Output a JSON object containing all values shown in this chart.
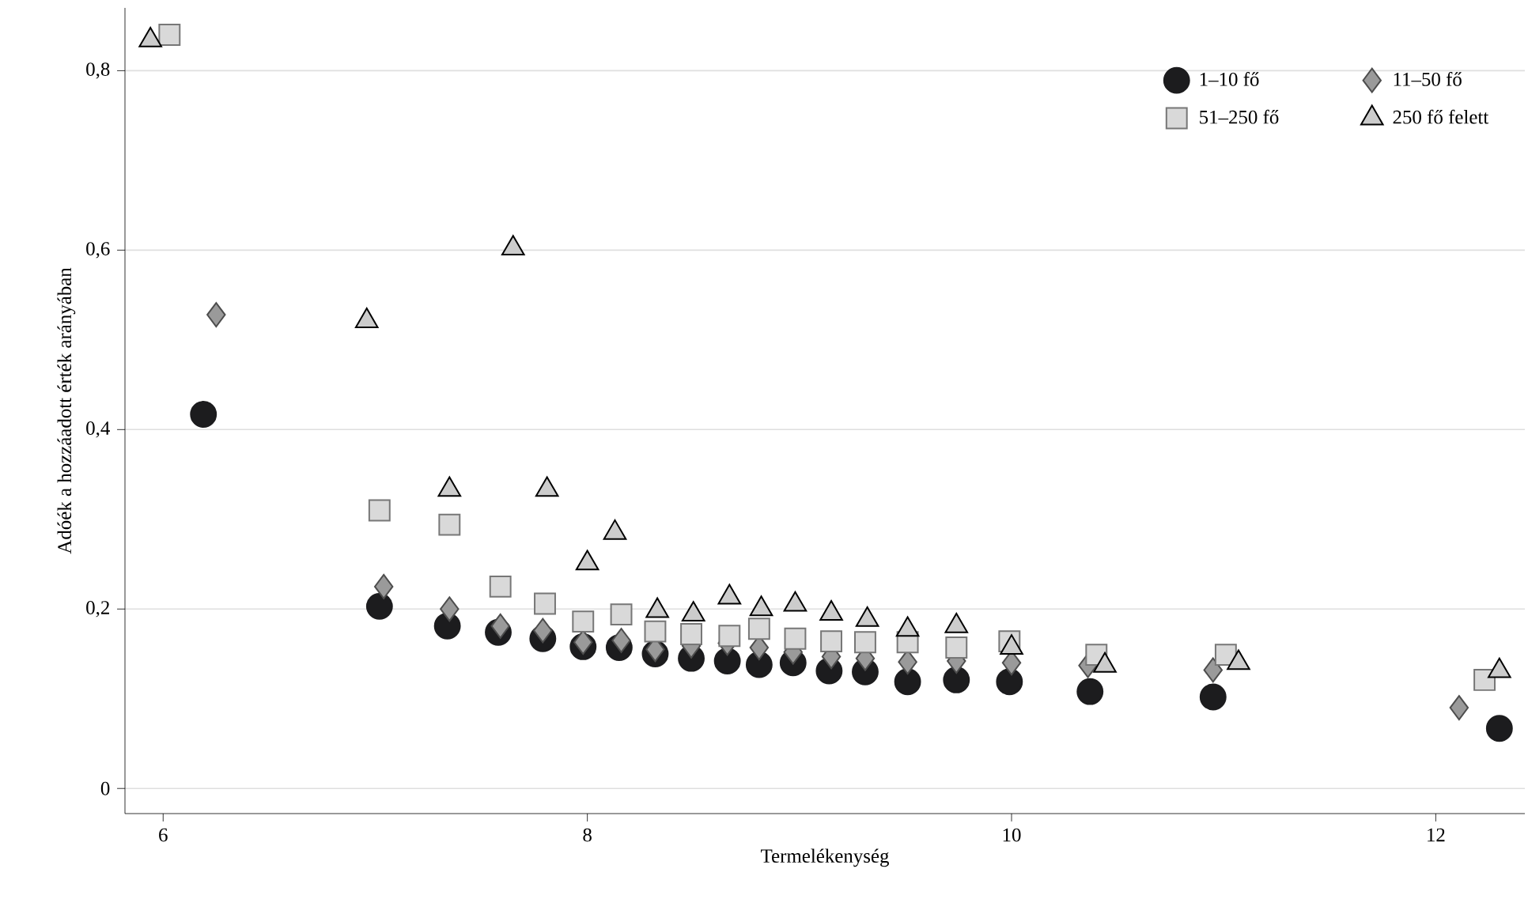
{
  "chart_data": {
    "type": "scatter",
    "xlabel": "Termelékenység",
    "ylabel": "Adóék a hozzáadott érték arányában",
    "xlim": [
      5.82,
      12.42
    ],
    "ylim": [
      -0.028,
      0.87
    ],
    "xticks": [
      6,
      8,
      10,
      12
    ],
    "yticks": [
      0,
      {
        "value": 0.2,
        "label": "0,2"
      },
      {
        "value": 0.4,
        "label": "0,4"
      },
      {
        "value": 0.6,
        "label": "0,6"
      },
      {
        "value": 0.8,
        "label": "0,8"
      }
    ],
    "grid": "y",
    "legend": "top right",
    "series": [
      {
        "name": "1–10 fő",
        "color": "#1c1c1e",
        "marker": "circle",
        "x": [
          6.19,
          7.02,
          7.34,
          7.58,
          7.79,
          7.98,
          8.15,
          8.32,
          8.49,
          8.66,
          8.81,
          8.97,
          9.14,
          9.31,
          9.51,
          9.74,
          9.99,
          10.37,
          10.95,
          12.3
        ],
        "values": [
          0.417,
          0.203,
          0.181,
          0.174,
          0.167,
          0.158,
          0.157,
          0.15,
          0.145,
          0.142,
          0.138,
          0.14,
          0.131,
          0.13,
          0.119,
          0.121,
          0.119,
          0.108,
          0.102,
          0.067
        ]
      },
      {
        "name": "11–50 fő",
        "color": "#9a9a9a",
        "marker": "diamond",
        "x": [
          6.25,
          7.04,
          7.35,
          7.59,
          7.79,
          7.98,
          8.16,
          8.32,
          8.49,
          8.66,
          8.81,
          8.97,
          9.15,
          9.31,
          9.51,
          9.74,
          10.0,
          10.36,
          10.95,
          12.11
        ],
        "values": [
          0.528,
          0.225,
          0.2,
          0.181,
          0.176,
          0.163,
          0.165,
          0.155,
          0.159,
          0.162,
          0.157,
          0.152,
          0.147,
          0.145,
          0.141,
          0.142,
          0.14,
          0.137,
          0.132,
          0.09
        ]
      },
      {
        "name": "51–250 fő",
        "color": "#d9d9d9",
        "marker": "square",
        "x": [
          6.03,
          7.02,
          7.35,
          7.59,
          7.8,
          7.98,
          8.16,
          8.32,
          8.49,
          8.67,
          8.81,
          8.98,
          9.15,
          9.31,
          9.51,
          9.74,
          9.99,
          10.4,
          11.01,
          12.23
        ],
        "values": [
          0.84,
          0.31,
          0.294,
          0.225,
          0.206,
          0.186,
          0.194,
          0.175,
          0.172,
          0.17,
          0.178,
          0.167,
          0.164,
          0.163,
          0.163,
          0.157,
          0.164,
          0.149,
          0.149,
          0.121
        ]
      },
      {
        "name": "250 fő felett",
        "color": "#cccccc",
        "marker": "triangle",
        "x": [
          5.94,
          6.96,
          7.35,
          7.65,
          7.81,
          8.0,
          8.13,
          8.33,
          8.5,
          8.67,
          8.82,
          8.98,
          9.15,
          9.32,
          9.51,
          9.74,
          10.0,
          10.44,
          11.07,
          12.3
        ],
        "values": [
          0.834,
          0.521,
          0.333,
          0.602,
          0.333,
          0.251,
          0.285,
          0.198,
          0.194,
          0.213,
          0.2,
          0.205,
          0.195,
          0.188,
          0.177,
          0.181,
          0.157,
          0.137,
          0.14,
          0.131
        ]
      }
    ]
  }
}
